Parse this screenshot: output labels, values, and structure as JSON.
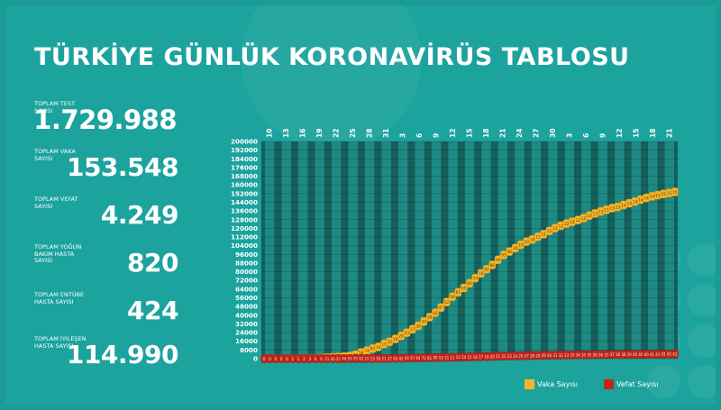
{
  "title": "TÜRKİYE GÜNLÜK KORONAVİRÜS TABLOSU",
  "stats": [
    {
      "label": "Toplam Test Sayısı",
      "value": "1.729.988"
    },
    {
      "label": "Toplam Vaka Sayısı",
      "value": "153.548"
    },
    {
      "label": "Toplam Vefat Sayısı",
      "value": "4.249"
    },
    {
      "label": "Toplam Yoğun Bakım Hasta Sayısı",
      "value": "820"
    },
    {
      "label": "Toplam Entübe Hasta Sayısı",
      "value": "424"
    },
    {
      "label": "Toplam İyileşen Hasta Sayısı",
      "value": "114.990"
    }
  ],
  "chart_data": {
    "type": "line",
    "x_tick_labels": [
      "10",
      "13",
      "16",
      "19",
      "22",
      "25",
      "28",
      "31",
      "3",
      "6",
      "9",
      "12",
      "15",
      "18",
      "21",
      "24",
      "27",
      "30",
      "3",
      "6",
      "9",
      "12",
      "15",
      "18",
      "21"
    ],
    "ylim": [
      0,
      200000
    ],
    "y_ticks": [
      0,
      8000,
      16000,
      24000,
      32000,
      40000,
      48000,
      56000,
      64000,
      72000,
      80000,
      88000,
      96000,
      104000,
      112000,
      120000,
      128000,
      136000,
      144000,
      152000,
      160000,
      168000,
      176000,
      184000,
      192000,
      200000
    ],
    "y_tick_labels": [
      "0",
      "8000",
      "16000",
      "24000",
      "32000",
      "40000",
      "48000",
      "56000",
      "64000",
      "72000",
      "80000",
      "88000",
      "96000",
      "104000",
      "112000",
      "120000",
      "128000",
      "136000",
      "144000",
      "152000",
      "160000",
      "168000",
      "176000",
      "184000",
      "192000",
      "200000"
    ],
    "grid": true,
    "legend_position": "bottom-right",
    "series": [
      {
        "name": "Vaka Sayısı",
        "color": "#f5b52a",
        "values": [
          1,
          1,
          5,
          5,
          6,
          18,
          47,
          98,
          191,
          359,
          670,
          947,
          1236,
          1529,
          1872,
          2433,
          3629,
          5698,
          7402,
          9217,
          10827,
          13531,
          15679,
          18135,
          20921,
          23934,
          27069,
          30217,
          34109,
          38226,
          42282,
          47029,
          52167,
          56956,
          61049,
          65111,
          69392,
          74193,
          78546,
          82329,
          86306,
          90980,
          95591,
          98674,
          101790,
          104912,
          107773,
          109704,
          112261,
          114653,
          117589,
          120204,
          122392,
          124375,
          126045,
          127659,
          129491,
          131744,
          133721,
          135569,
          137115,
          138657,
          139771,
          141475,
          143114,
          144749,
          146457,
          148067,
          149435,
          150593,
          151615,
          152587,
          153548
        ],
        "labels": [
          "1",
          "1",
          "5",
          "5",
          "6",
          "18",
          "47",
          "98",
          "191",
          "359",
          "670",
          "947",
          "1236",
          "1529",
          "1872",
          "2433",
          "3629",
          "5698",
          "7402",
          "9217",
          "10827",
          "13531",
          "15679",
          "18135",
          "20921",
          "23934",
          "27069",
          "30217",
          "34109",
          "38226",
          "42282",
          "47029",
          "52167",
          "56956",
          "61049",
          "65111",
          "69392",
          "74193",
          "78546",
          "82329",
          "86306",
          "90980",
          "95591",
          "98674",
          "101790",
          "104912",
          "107773",
          "109704",
          "112261",
          "114653",
          "117589",
          "120204",
          "122392",
          "124375",
          "126045",
          "127659",
          "129491",
          "131744",
          "133721",
          "135569",
          "137115",
          "138657",
          "139771",
          "141475",
          "143114",
          "144749",
          "146457",
          "148067",
          "149435",
          "150593",
          "151615",
          "152587",
          "153548"
        ]
      },
      {
        "name": "Vefat Sayısı",
        "color": "#c2271c",
        "values": [
          0,
          0,
          0,
          0,
          0,
          1,
          1,
          2,
          3,
          4,
          9,
          21,
          30,
          37,
          44,
          59,
          75,
          92,
          108,
          131,
          168,
          214,
          277,
          356,
          425,
          501,
          574,
          649,
          725,
          812,
          908,
          1006,
          1101,
          1198,
          1296,
          1403,
          1518,
          1643,
          1769,
          1890,
          2017,
          2140,
          2259,
          2376,
          2491,
          2600,
          2706,
          2805,
          2900,
          2992,
          3081,
          3174,
          3258,
          3336,
          3397,
          3461,
          3520,
          3584,
          3641,
          3689,
          3739,
          3786,
          3841,
          3894,
          3952,
          4007,
          4055,
          4096,
          4140,
          4171,
          4199,
          4222,
          4249
        ],
        "labels": [
          "0",
          "0",
          "0",
          "0",
          "0",
          "1",
          "1",
          "2",
          "3",
          "4",
          "9",
          "21",
          "30",
          "37",
          "44",
          "59",
          "75",
          "92",
          "108",
          "131",
          "168",
          "214",
          "277",
          "356",
          "425",
          "501",
          "574",
          "649",
          "725",
          "812",
          "908",
          "1006",
          "1101",
          "1198",
          "1296",
          "1403",
          "1518",
          "1643",
          "1769",
          "1890",
          "2017",
          "2140",
          "2259",
          "2376",
          "2491",
          "2600",
          "2706",
          "2805",
          "2900",
          "2992",
          "3081",
          "3174",
          "3258",
          "3336",
          "3397",
          "3461",
          "3520",
          "3584",
          "3641",
          "3689",
          "3739",
          "3786",
          "3841",
          "3894",
          "3952",
          "4007",
          "4055",
          "4096",
          "4140",
          "4171",
          "4199",
          "4222",
          "4249"
        ]
      }
    ]
  }
}
